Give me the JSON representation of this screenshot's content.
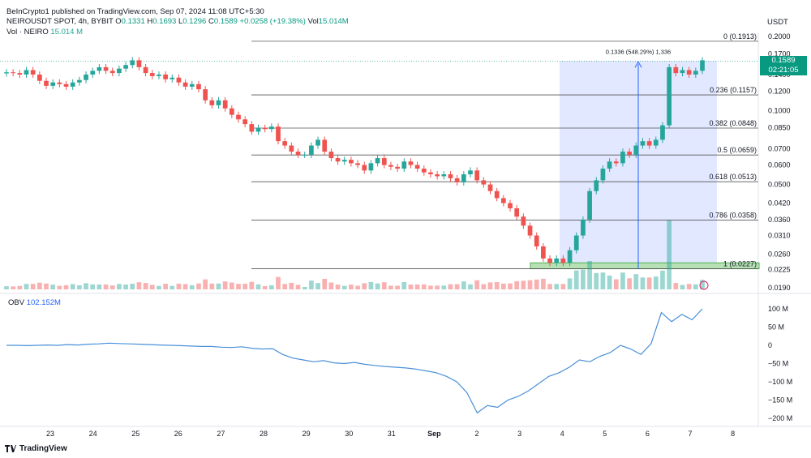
{
  "header": {
    "published": "BeInCrypto1 published on TradingView.com, Sep 07, 2024 11:08 UTC+5:30",
    "symbol": "NEIROUSDT SPOT, 4h, BYBIT",
    "open_label": "O",
    "open": "0.1331",
    "high_label": "H",
    "high": "0.1693",
    "low_label": "L",
    "low": "0.1296",
    "close_label": "C",
    "close": "0.1589",
    "change": "+0.0258 (+19.38%)",
    "vol_label": "Vol",
    "vol_value": "15.014M",
    "vol_series_label": "Vol · NEIRO",
    "vol_series_value": "15.014 M"
  },
  "currency": "USDT",
  "price_badge": {
    "price": "0.1589",
    "countdown": "02:21:05"
  },
  "measure_label": "0.1336 (548.29%) 1,336",
  "obv": {
    "label": "OBV",
    "value": "102.152M"
  },
  "footer": {
    "brand": "TradingView"
  },
  "colors": {
    "up": "#26a69a",
    "down": "#ef5350",
    "obv_line": "#4a90d9",
    "fib_zone": "#c9d6ff",
    "support_zone": "#b7e1b5"
  },
  "chart_data": [
    {
      "type": "candlestick",
      "title": "NEIROUSDT SPOT, 4h, BYBIT",
      "y_scale": "log",
      "y_ticks": [
        "0.2000",
        "0.1700",
        "0.1400",
        "0.1200",
        "0.1000",
        "0.0850",
        "0.0700",
        "0.0600",
        "0.0500",
        "0.0420",
        "0.0360",
        "0.0310",
        "0.0260",
        "0.0225",
        "0.0190"
      ],
      "x_ticks": [
        "23",
        "24",
        "25",
        "26",
        "27",
        "28",
        "29",
        "30",
        "31",
        "Sep",
        "2",
        "3",
        "4",
        "5",
        "6",
        "7",
        "8"
      ],
      "fib_levels": [
        {
          "label": "0 (0.1913)",
          "value": 0.1913
        },
        {
          "label": "0.236 (0.1157)",
          "value": 0.1157
        },
        {
          "label": "0.382 (0.0848)",
          "value": 0.0848
        },
        {
          "label": "0.5 (0.0659)",
          "value": 0.0659
        },
        {
          "label": "0.618 (0.0513)",
          "value": 0.0513
        },
        {
          "label": "0.786 (0.0358)",
          "value": 0.0358
        },
        {
          "label": "1 (0.0227)",
          "value": 0.0227
        }
      ],
      "closes": [
        0.143,
        0.142,
        0.14,
        0.146,
        0.14,
        0.132,
        0.126,
        0.13,
        0.128,
        0.125,
        0.13,
        0.133,
        0.14,
        0.145,
        0.15,
        0.145,
        0.142,
        0.148,
        0.153,
        0.16,
        0.15,
        0.142,
        0.138,
        0.14,
        0.134,
        0.136,
        0.13,
        0.125,
        0.128,
        0.122,
        0.11,
        0.105,
        0.11,
        0.102,
        0.096,
        0.092,
        0.088,
        0.082,
        0.085,
        0.084,
        0.086,
        0.075,
        0.072,
        0.068,
        0.066,
        0.066,
        0.072,
        0.076,
        0.068,
        0.064,
        0.062,
        0.063,
        0.061,
        0.06,
        0.057,
        0.061,
        0.064,
        0.06,
        0.059,
        0.058,
        0.062,
        0.06,
        0.058,
        0.056,
        0.055,
        0.054,
        0.055,
        0.053,
        0.051,
        0.055,
        0.057,
        0.052,
        0.05,
        0.047,
        0.044,
        0.042,
        0.04,
        0.037,
        0.034,
        0.031,
        0.028,
        0.025,
        0.024,
        0.025,
        0.024,
        0.027,
        0.031,
        0.036,
        0.047,
        0.052,
        0.058,
        0.062,
        0.061,
        0.068,
        0.066,
        0.072,
        0.075,
        0.072,
        0.076,
        0.087,
        0.15,
        0.142,
        0.146,
        0.14,
        0.145,
        0.16
      ],
      "volume_scale": "relative"
    },
    {
      "type": "line",
      "title": "OBV",
      "y_ticks": [
        "100 M",
        "50 M",
        "0",
        "−50 M",
        "−100 M",
        "−150 M",
        "−200 M"
      ],
      "series": [
        {
          "name": "OBV",
          "values": [
            0,
            0,
            -1,
            0,
            1,
            0,
            2,
            1,
            3,
            4,
            6,
            5,
            4,
            3,
            2,
            1,
            0,
            -1,
            -2,
            -3,
            -3,
            -5,
            -6,
            -4,
            -8,
            -10,
            -9,
            -25,
            -35,
            -40,
            -45,
            -42,
            -48,
            -50,
            -47,
            -52,
            -55,
            -58,
            -60,
            -62,
            -65,
            -70,
            -75,
            -85,
            -100,
            -130,
            -185,
            -165,
            -170,
            -150,
            -140,
            -125,
            -105,
            -85,
            -75,
            -60,
            -40,
            -45,
            -30,
            -20,
            0,
            -10,
            -25,
            5,
            90,
            65,
            85,
            70,
            100
          ]
        }
      ]
    }
  ]
}
